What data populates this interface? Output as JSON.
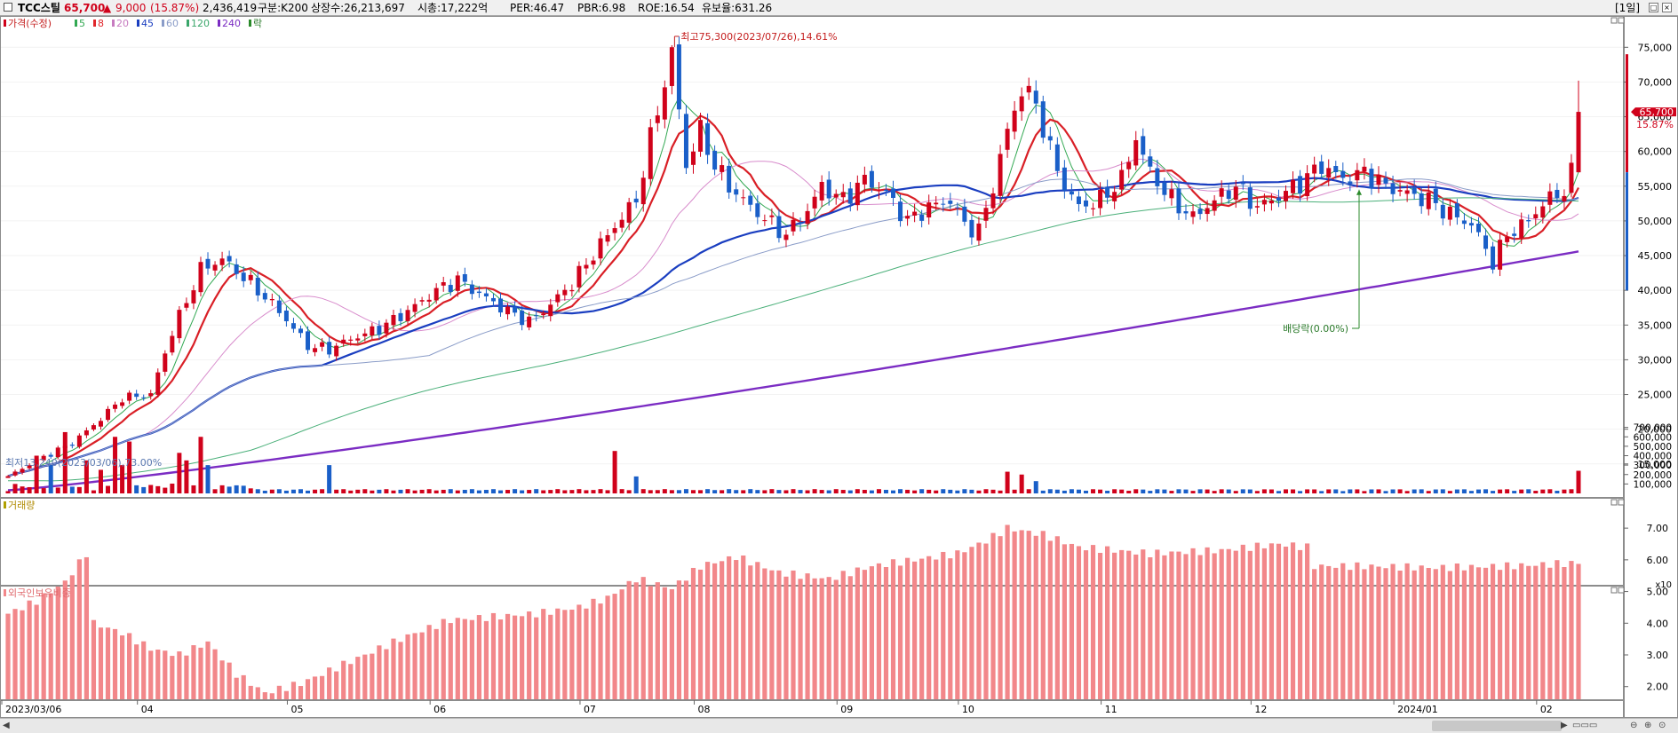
{
  "header": {
    "stock_name": "TCC스틸",
    "price": "65,700",
    "change_arrow": "▲",
    "change": "9,000",
    "change_pct": "(15.87%)",
    "volume": "2,436,419",
    "category": "구분:K200",
    "shares": "상장수:26,213,697",
    "market_cap": "시총:17,222억",
    "per": "PER:46.47",
    "pbr": "PBR:6.98",
    "roe": "ROE:16.54",
    "reserve": "유보율:631.26",
    "period_button": "[1일]",
    "up_color": "#d0021b",
    "down_color": "#1a5fc8"
  },
  "legend": {
    "price_label": "가격(수정)",
    "ma": [
      {
        "label": "5",
        "color": "#32a852"
      },
      {
        "label": "8",
        "color": "#e0262b"
      },
      {
        "label": "20",
        "color": "#c77bc0"
      },
      {
        "label": "45",
        "color": "#1a3ec0"
      },
      {
        "label": "60",
        "color": "#8a9cc8"
      },
      {
        "label": "120",
        "color": "#3aa66a"
      },
      {
        "label": "240",
        "color": "#7b2cc3"
      }
    ],
    "ex_label": "락",
    "volume_label": "거래량",
    "foreign_label": "외국인보유비중"
  },
  "annotations": {
    "high": "최고75,300(2023/07/26),14.61%",
    "low": "최저13,240(2023/03/06),73.00%",
    "dividend": "배당락(0.00%)",
    "price_tag": "65,700",
    "pct_tag": "15.87%"
  },
  "chart_data": [
    {
      "type": "candlestick",
      "title": "TCC스틸",
      "x_tick_labels": [
        "2023/03/06",
        "04",
        "05",
        "06",
        "07",
        "08",
        "09",
        "10",
        "11",
        "12",
        "2024/01",
        "02"
      ],
      "y_ticks": [
        15000,
        20000,
        25000,
        30000,
        35000,
        40000,
        45000,
        50000,
        55000,
        60000,
        65000,
        70000,
        75000
      ],
      "y_tick_labels": [
        "15,000",
        "20,000",
        "25,000",
        "30,000",
        "35,000",
        "40,000",
        "45,000",
        "50,000",
        "55,000",
        "60,000",
        "65,000",
        "70,000",
        "75,000"
      ],
      "ylim": [
        10500,
        79000
      ],
      "close_anchors": [
        [
          0,
          13240
        ],
        [
          4,
          15500
        ],
        [
          9,
          18000
        ],
        [
          13,
          21500
        ],
        [
          16,
          24500
        ],
        [
          20,
          25000
        ],
        [
          23,
          34000
        ],
        [
          27,
          43000
        ],
        [
          30,
          44500
        ],
        [
          34,
          41000
        ],
        [
          38,
          37000
        ],
        [
          42,
          32000
        ],
        [
          45,
          31500
        ],
        [
          48,
          33000
        ],
        [
          52,
          34500
        ],
        [
          56,
          37000
        ],
        [
          60,
          40000
        ],
        [
          63,
          41500
        ],
        [
          66,
          39500
        ],
        [
          70,
          37000
        ],
        [
          73,
          35500
        ],
        [
          75,
          37000
        ],
        [
          79,
          41000
        ],
        [
          84,
          48000
        ],
        [
          88,
          53000
        ],
        [
          91,
          66000
        ],
        [
          93,
          74000
        ],
        [
          95,
          58000
        ],
        [
          97,
          63000
        ],
        [
          99,
          58000
        ],
        [
          101,
          55000
        ],
        [
          104,
          52000
        ],
        [
          107,
          49500
        ],
        [
          109,
          48000
        ],
        [
          112,
          51500
        ],
        [
          114,
          55000
        ],
        [
          117,
          53000
        ],
        [
          120,
          56000
        ],
        [
          123,
          54000
        ],
        [
          126,
          50000
        ],
        [
          129,
          52000
        ],
        [
          132,
          53000
        ],
        [
          134,
          49500
        ],
        [
          136,
          48500
        ],
        [
          138,
          55000
        ],
        [
          140,
          63000
        ],
        [
          142,
          69000
        ],
        [
          144,
          67000
        ],
        [
          146,
          60000
        ],
        [
          148,
          55000
        ],
        [
          150,
          52000
        ],
        [
          153,
          53000
        ],
        [
          156,
          56000
        ],
        [
          158,
          62000
        ],
        [
          160,
          57000
        ],
        [
          163,
          53000
        ],
        [
          166,
          50500
        ],
        [
          169,
          53000
        ],
        [
          172,
          55000
        ],
        [
          175,
          52000
        ],
        [
          178,
          53500
        ],
        [
          181,
          55500
        ],
        [
          184,
          58000
        ],
        [
          187,
          56000
        ],
        [
          190,
          57000
        ],
        [
          193,
          55000
        ],
        [
          196,
          54000
        ],
        [
          199,
          53000
        ],
        [
          202,
          51000
        ],
        [
          205,
          49500
        ],
        [
          207,
          46000
        ],
        [
          208,
          44000
        ],
        [
          210,
          48000
        ],
        [
          213,
          50000
        ],
        [
          215,
          52500
        ],
        [
          218,
          54500
        ],
        [
          219,
          56700
        ],
        [
          220,
          65700
        ]
      ],
      "high_point": {
        "index": 93,
        "value": 75300,
        "date": "2023/07/26"
      },
      "low_point": {
        "index": 0,
        "value": 13240,
        "date": "2023/03/06"
      },
      "last": {
        "close": 65700,
        "high": 70200,
        "low": 57500
      },
      "moving_averages": [
        5,
        8,
        20,
        45,
        60,
        120,
        240
      ],
      "ma240_range": [
        11200,
        45600
      ]
    },
    {
      "type": "bar",
      "title": "거래량",
      "y_ticks": [
        100000,
        200000,
        300000,
        400000,
        500000,
        600000,
        700000
      ],
      "y_tick_labels": [
        "100,000",
        "200,000",
        "300,000",
        "400,000",
        "500,000",
        "600,000",
        "700,000"
      ],
      "unit_label": "x10",
      "ylim": [
        0,
        800000
      ],
      "peaks": [
        [
          4,
          400000
        ],
        [
          6,
          300000
        ],
        [
          8,
          650000
        ],
        [
          11,
          350000
        ],
        [
          13,
          250000
        ],
        [
          15,
          600000
        ],
        [
          16,
          300000
        ],
        [
          17,
          550000
        ],
        [
          24,
          430000
        ],
        [
          25,
          350000
        ],
        [
          27,
          600000
        ],
        [
          28,
          300000
        ],
        [
          45,
          300000
        ],
        [
          85,
          450000
        ],
        [
          88,
          180000
        ],
        [
          140,
          230000
        ],
        [
          142,
          200000
        ],
        [
          144,
          130000
        ],
        [
          220,
          240000
        ]
      ],
      "baseline": 35000
    },
    {
      "type": "bar",
      "title": "외국인보유비중",
      "y_ticks": [
        2.0,
        3.0,
        4.0,
        5.0,
        6.0,
        7.0
      ],
      "y_tick_labels": [
        "2.00",
        "3.00",
        "4.00",
        "5.00",
        "6.00",
        "7.00"
      ],
      "ylim": [
        1.6,
        7.9
      ],
      "anchors": [
        [
          0,
          4.3
        ],
        [
          4,
          4.7
        ],
        [
          8,
          5.3
        ],
        [
          11,
          6.2
        ],
        [
          12,
          4.0
        ],
        [
          16,
          3.7
        ],
        [
          20,
          3.2
        ],
        [
          24,
          3.0
        ],
        [
          28,
          3.4
        ],
        [
          32,
          2.4
        ],
        [
          36,
          1.8
        ],
        [
          41,
          2.1
        ],
        [
          45,
          2.5
        ],
        [
          50,
          3.0
        ],
        [
          56,
          3.6
        ],
        [
          62,
          4.1
        ],
        [
          68,
          4.2
        ],
        [
          74,
          4.3
        ],
        [
          80,
          4.5
        ],
        [
          84,
          4.8
        ],
        [
          88,
          5.4
        ],
        [
          93,
          5.1
        ],
        [
          97,
          5.8
        ],
        [
          102,
          6.1
        ],
        [
          108,
          5.6
        ],
        [
          115,
          5.4
        ],
        [
          121,
          5.8
        ],
        [
          127,
          6.0
        ],
        [
          133,
          6.2
        ],
        [
          137,
          6.6
        ],
        [
          140,
          7.0
        ],
        [
          145,
          6.8
        ],
        [
          150,
          6.4
        ],
        [
          160,
          6.2
        ],
        [
          170,
          6.3
        ],
        [
          178,
          6.5
        ],
        [
          182,
          6.4
        ],
        [
          183,
          5.8
        ],
        [
          190,
          5.8
        ],
        [
          200,
          5.75
        ],
        [
          210,
          5.8
        ],
        [
          220,
          5.9
        ]
      ]
    }
  ]
}
